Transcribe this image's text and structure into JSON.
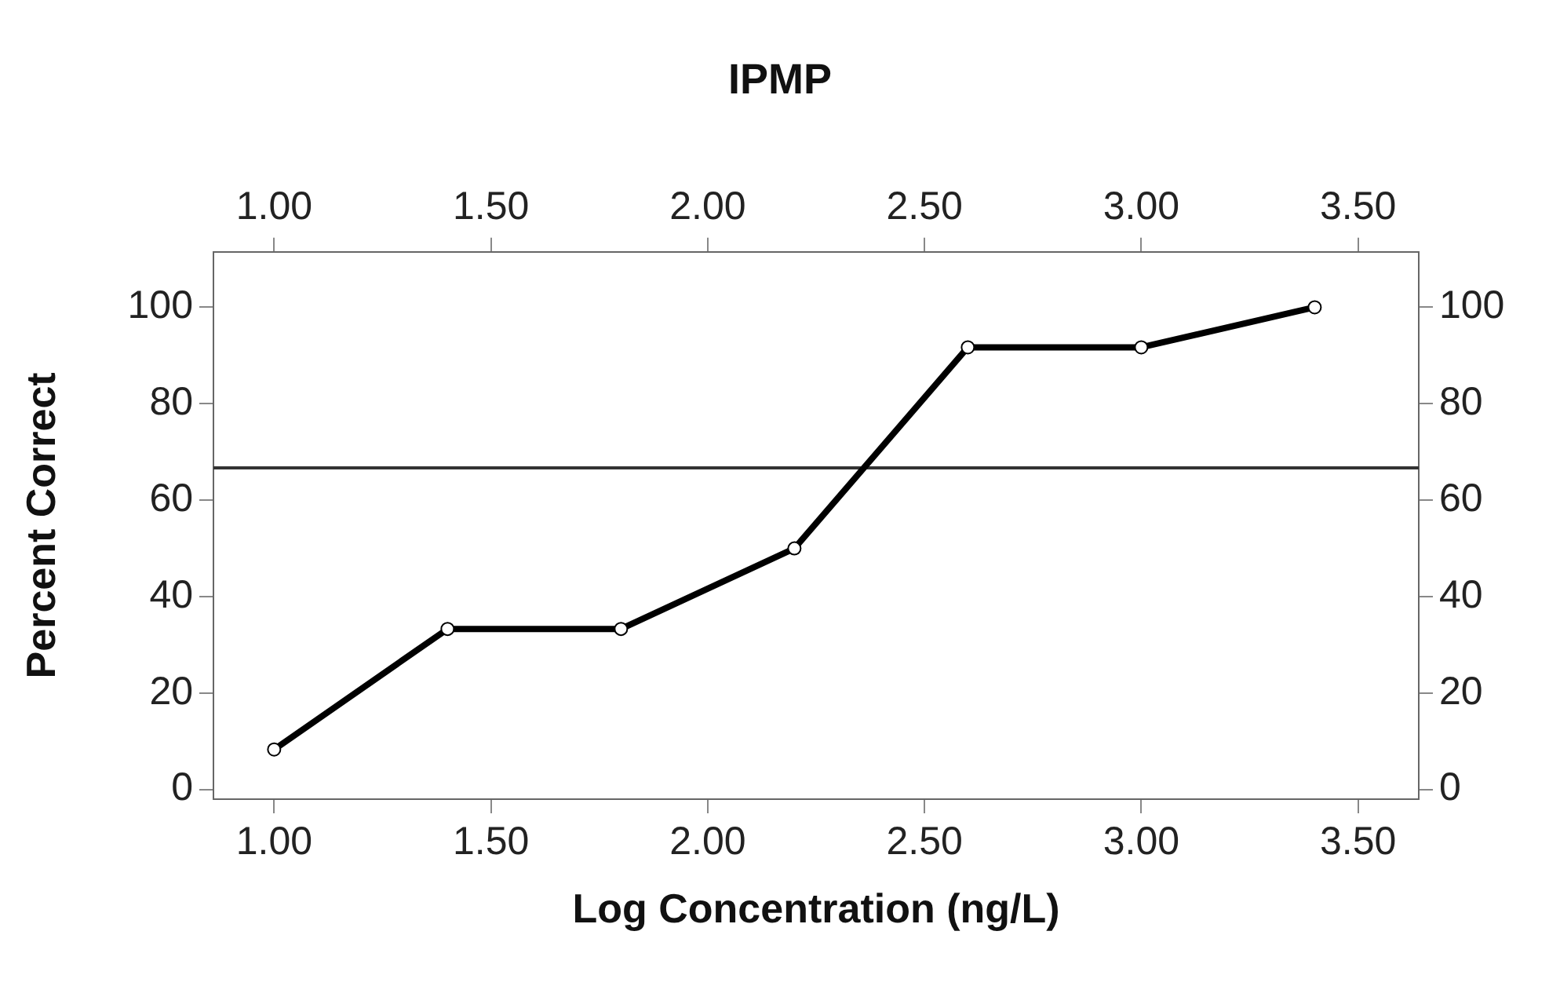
{
  "chart_data": {
    "type": "line",
    "title": "IPMP",
    "xlabel": "Log Concentration (ng/L)",
    "ylabel": "Percent Correct",
    "x": [
      1.0,
      1.4,
      1.8,
      2.2,
      2.6,
      3.0,
      3.4
    ],
    "series": [
      {
        "color": "#000000",
        "values": [
          8.3,
          33.3,
          33.3,
          50,
          91.7,
          91.7,
          100
        ]
      }
    ],
    "xlim": [
      0.86,
      3.64
    ],
    "xticks": [
      {
        "value": 1,
        "label": "1.00"
      },
      {
        "value": 1.5,
        "label": "1.50"
      },
      {
        "value": 2,
        "label": "2.00"
      },
      {
        "value": 2.5,
        "label": "2.50"
      },
      {
        "value": 3,
        "label": "3.00"
      },
      {
        "value": 3.5,
        "label": "3.50"
      }
    ],
    "x2lim": [
      0.86,
      3.64
    ],
    "x2ticks": [
      {
        "value": 1,
        "label": "1.00"
      },
      {
        "value": 1.5,
        "label": "1.50"
      },
      {
        "value": 2,
        "label": "2.00"
      },
      {
        "value": 2.5,
        "label": "2.50"
      },
      {
        "value": 3,
        "label": "3.00"
      },
      {
        "value": 3.5,
        "label": "3.50"
      }
    ],
    "ylim": [
      -2,
      111.5
    ],
    "yticks": [
      0,
      20,
      40,
      60,
      80,
      100
    ],
    "y2lim": [
      -2,
      111.5
    ],
    "y2ticks": [
      0,
      20,
      40,
      60,
      80,
      100
    ],
    "ref_lines": [
      {
        "axis": "y",
        "value": 66.7,
        "color": "#333333"
      }
    ],
    "grid": false,
    "legend": false,
    "marker": "circle",
    "line_style": "solid"
  }
}
